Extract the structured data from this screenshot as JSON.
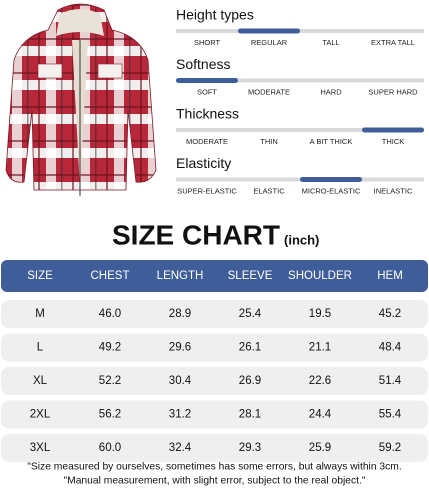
{
  "attributes": [
    {
      "title": "Height types",
      "options": [
        "SHORT",
        "REGULAR",
        "TALL",
        "EXTRA TALL"
      ],
      "selected": 1
    },
    {
      "title": "Softness",
      "options": [
        "SOFT",
        "MODERATE",
        "HARD",
        "SUPER HARD"
      ],
      "selected": 0
    },
    {
      "title": "Thickness",
      "options": [
        "MODERATE",
        "THIN",
        "A BIT THICK",
        "THICK"
      ],
      "selected": 3
    },
    {
      "title": "Elasticity",
      "options": [
        "SUPER-ELASTIC",
        "ELASTIC",
        "MICRO-ELASTIC",
        "INELASTIC"
      ],
      "selected": 2
    }
  ],
  "chart": {
    "title": "SIZE CHART",
    "unit": "(inch)"
  },
  "table": {
    "header": [
      "SIZE",
      "CHEST",
      "LENGTH",
      "SLEEVE",
      "SHOULDER",
      "HEM"
    ],
    "rows": [
      [
        "M",
        "46.0",
        "28.9",
        "25.4",
        "19.5",
        "45.2"
      ],
      [
        "L",
        "49.2",
        "29.6",
        "26.1",
        "21.1",
        "48.4"
      ],
      [
        "XL",
        "52.2",
        "30.4",
        "26.9",
        "22.6",
        "51.4"
      ],
      [
        "2XL",
        "56.2",
        "31.2",
        "28.1",
        "24.4",
        "55.4"
      ],
      [
        "3XL",
        "60.0",
        "32.4",
        "29.3",
        "25.9",
        "59.2"
      ]
    ]
  },
  "notes": [
    "\"Size measured by ourselves, sometimes has some errors, but always within 3cm.",
    "\"Manual measurement, with slight error, subject to the real object.\""
  ]
}
